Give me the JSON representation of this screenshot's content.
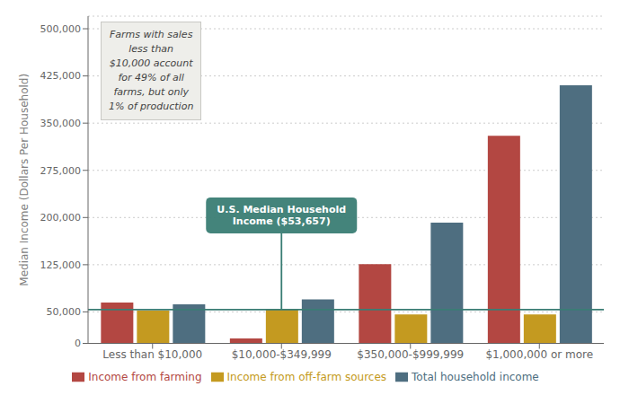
{
  "chart_data": {
    "type": "bar",
    "categories": [
      "Less than $10,000",
      "$10,000-$349,999",
      "$350,000-$999,999",
      "$1,000,000 or more"
    ],
    "series": [
      {
        "name": "Income from farming",
        "color": "#b34742",
        "values": [
          65000,
          8000,
          126000,
          330000
        ]
      },
      {
        "name": "Income from off-farm sources",
        "color": "#c49a20",
        "values": [
          52000,
          55000,
          46000,
          46000
        ]
      },
      {
        "name": "Total household income",
        "color": "#4e6e80",
        "values": [
          62000,
          70000,
          192000,
          410000
        ]
      }
    ],
    "ylabel": "Median Income (Dollars Per Household)",
    "ylim": [
      0,
      520000
    ],
    "yticks": [
      0,
      {
        "value": 50000,
        "label": "50,000"
      },
      {
        "value": 125000,
        "label": "125,000"
      },
      {
        "value": 200000,
        "label": "200,000"
      },
      {
        "value": 275000,
        "label": "275,000"
      },
      {
        "value": 350000,
        "label": "350,000"
      },
      {
        "value": 425000,
        "label": "425,000"
      },
      {
        "value": 500000,
        "label": "500,000"
      }
    ],
    "grid": true,
    "legend": "bottom",
    "reference_lines": [
      {
        "y": 53657,
        "color": "#3a7d74",
        "label": "U.S. Median Household\nIncome ($53,657)"
      }
    ],
    "notes": [
      "Farms with sales\nless than\n$10,000 account\nfor 49% of all\nfarms, but only\n1% of production"
    ]
  }
}
